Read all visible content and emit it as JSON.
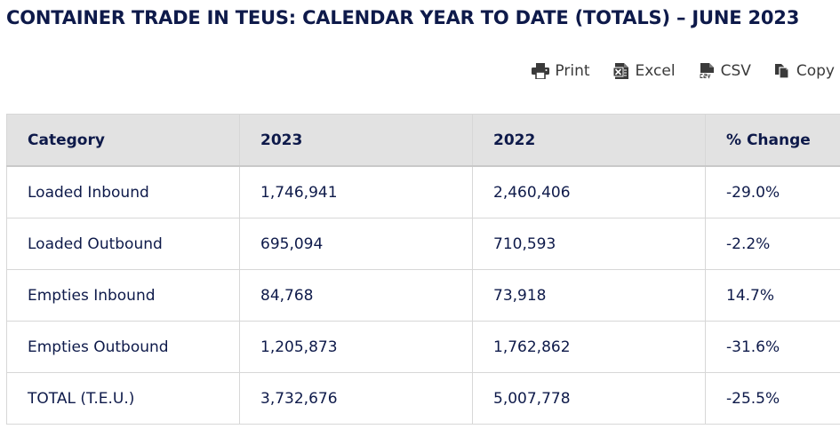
{
  "title": "CONTAINER TRADE IN TEUS: CALENDAR YEAR TO DATE (TOTALS) – JUNE 2023",
  "toolbar": {
    "print": "Print",
    "excel": "Excel",
    "csv": "CSV",
    "copy": "Copy"
  },
  "table": {
    "headers": [
      "Category",
      "2023",
      "2022",
      "% Change"
    ],
    "rows": [
      [
        "Loaded Inbound",
        "1,746,941",
        "2,460,406",
        "-29.0%"
      ],
      [
        "Loaded Outbound",
        "695,094",
        "710,593",
        "-2.2%"
      ],
      [
        "Empties Inbound",
        "84,768",
        "73,918",
        "14.7%"
      ],
      [
        "Empties Outbound",
        "1,205,873",
        "1,762,862",
        "-31.6%"
      ],
      [
        "TOTAL (T.E.U.)",
        "3,732,676",
        "5,007,778",
        "-25.5%"
      ]
    ]
  },
  "colors": {
    "title": "#0e1a4a",
    "header_bg": "#e2e2e2",
    "border": "#d7d7d7",
    "toolbar_text": "#3a3a3a"
  }
}
